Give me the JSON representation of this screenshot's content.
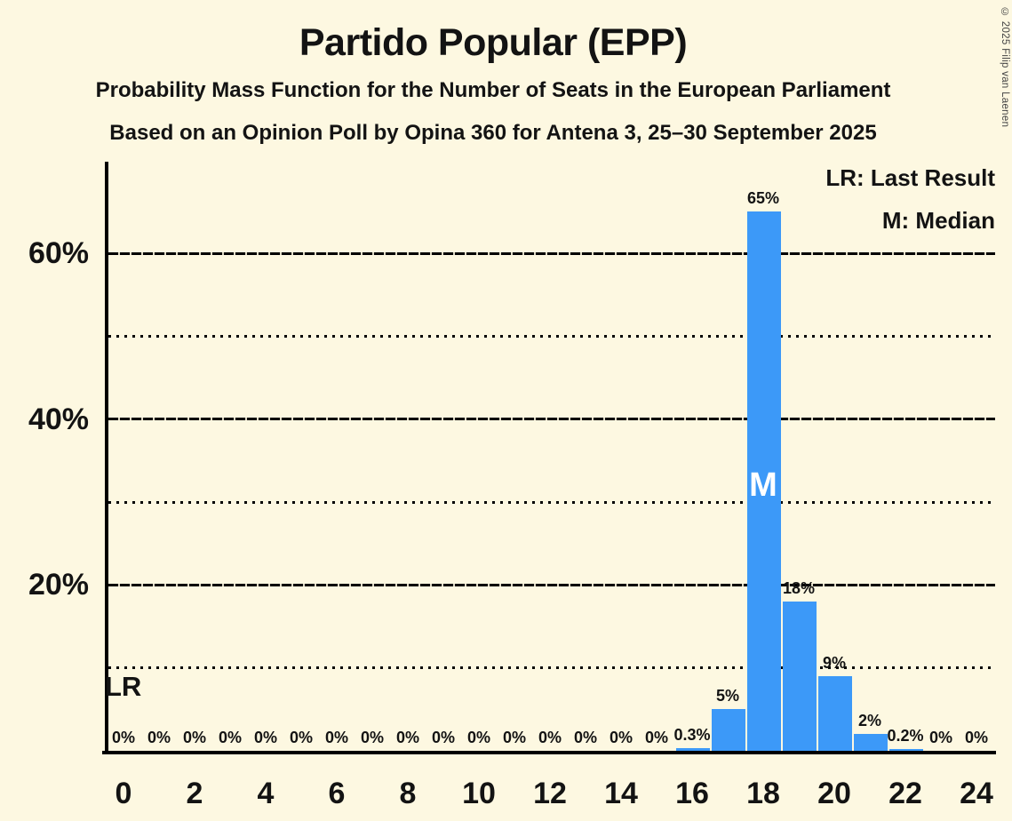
{
  "title": "Partido Popular (EPP)",
  "subtitle_line1": "Probability Mass Function for the Number of Seats in the European Parliament",
  "subtitle_line2": "Based on an Opinion Poll by Opina 360 for Antena 3, 25–30 September 2025",
  "legend": {
    "last_result_label": "LR: Last Result",
    "median_label": "M: Median"
  },
  "copyright": "© 2025 Filip van Laenen",
  "colors": {
    "background": "#FDF8E1",
    "bar": "#3C99F8",
    "text": "#131313"
  },
  "chart_data": {
    "type": "bar",
    "title": "Partido Popular (EPP)",
    "xlabel": "",
    "ylabel": "",
    "x": [
      0,
      1,
      2,
      3,
      4,
      5,
      6,
      7,
      8,
      9,
      10,
      11,
      12,
      13,
      14,
      15,
      16,
      17,
      18,
      19,
      20,
      21,
      22,
      23,
      24
    ],
    "values": [
      0,
      0,
      0,
      0,
      0,
      0,
      0,
      0,
      0,
      0,
      0,
      0,
      0,
      0,
      0,
      0,
      0.3,
      5,
      65,
      18,
      9,
      2,
      0.2,
      0,
      0
    ],
    "bar_labels": [
      "0%",
      "0%",
      "0%",
      "0%",
      "0%",
      "0%",
      "0%",
      "0%",
      "0%",
      "0%",
      "0%",
      "0%",
      "0%",
      "0%",
      "0%",
      "0%",
      "0.3%",
      "5%",
      "65%",
      "18%",
      "9%",
      "2%",
      "0.2%",
      "0%",
      "0%"
    ],
    "x_tick_seats": [
      0,
      2,
      4,
      6,
      8,
      10,
      12,
      14,
      16,
      18,
      20,
      22,
      24
    ],
    "x_tick_labels": [
      "0",
      "2",
      "4",
      "6",
      "8",
      "10",
      "12",
      "14",
      "16",
      "18",
      "20",
      "22",
      "24"
    ],
    "y_major_gridlines": [
      20,
      40,
      60
    ],
    "y_tick_labels": [
      "20%",
      "40%",
      "60%"
    ],
    "y_minor_gridlines": [
      10,
      30,
      50
    ],
    "ylim": [
      0,
      71
    ],
    "grid": true,
    "legend_position": "top-right",
    "annotations": {
      "last_result": {
        "text": "LR",
        "seat": 0
      },
      "median": {
        "text": "M",
        "seat": 18
      }
    }
  }
}
